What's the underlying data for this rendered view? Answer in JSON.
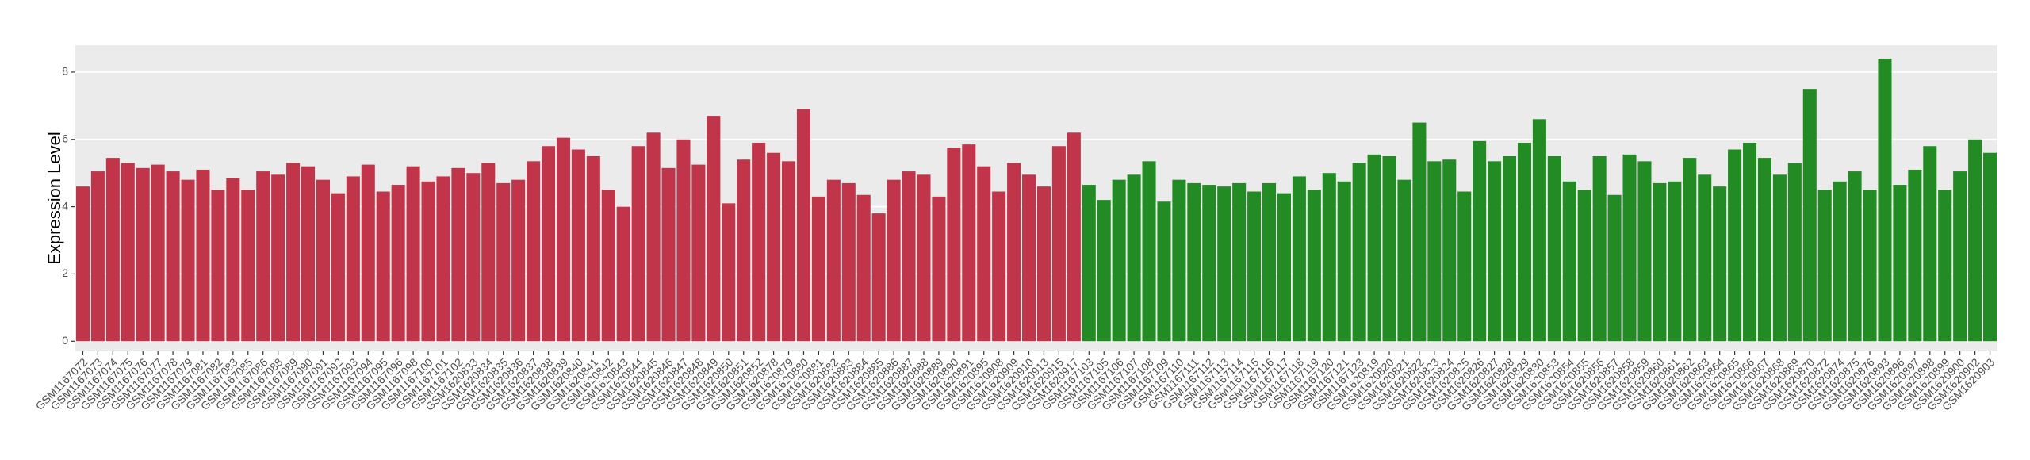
{
  "chart_data": {
    "type": "bar",
    "y_label": "Expression Level",
    "ylim": [
      -0.3,
      8.8
    ],
    "yticks": [
      0,
      2,
      4,
      6,
      8
    ],
    "grid": true,
    "series": [
      {
        "color": "#c0354a",
        "categories": [
          "GSM1167072",
          "GSM1167073",
          "GSM1167074",
          "GSM1167075",
          "GSM1167076",
          "GSM1167077",
          "GSM1167078",
          "GSM1167079",
          "GSM1167081",
          "GSM1167082",
          "GSM1167083",
          "GSM1167085",
          "GSM1167086",
          "GSM1167088",
          "GSM1167089",
          "GSM1167090",
          "GSM1167091",
          "GSM1167092",
          "GSM1167093",
          "GSM1167094",
          "GSM1167095",
          "GSM1167096",
          "GSM1167098",
          "GSM1167100",
          "GSM1167101",
          "GSM1167102",
          "GSM1620833",
          "GSM1620834",
          "GSM1620835",
          "GSM1620836",
          "GSM1620837",
          "GSM1620838",
          "GSM1620839",
          "GSM1620840",
          "GSM1620841",
          "GSM1620842",
          "GSM1620843",
          "GSM1620844",
          "GSM1620845",
          "GSM1620846",
          "GSM1620847",
          "GSM1620848",
          "GSM1620849",
          "GSM1620850",
          "GSM1620851",
          "GSM1620852",
          "GSM1620878",
          "GSM1620879",
          "GSM1620880",
          "GSM1620881",
          "GSM1620882",
          "GSM1620883",
          "GSM1620884",
          "GSM1620885",
          "GSM1620886",
          "GSM1620887",
          "GSM1620888",
          "GSM1620889",
          "GSM1620890",
          "GSM1620891",
          "GSM1620895",
          "GSM1620908",
          "GSM1620909",
          "GSM1620910",
          "GSM1620913",
          "GSM1620915",
          "GSM1620917"
        ],
        "values": [
          4.6,
          5.05,
          5.45,
          5.3,
          5.15,
          5.25,
          5.05,
          4.8,
          5.1,
          4.5,
          4.85,
          4.5,
          5.05,
          4.95,
          5.3,
          5.2,
          4.8,
          4.4,
          4.9,
          5.25,
          4.45,
          4.65,
          5.2,
          4.75,
          4.9,
          5.15,
          5.0,
          5.3,
          4.7,
          4.8,
          5.35,
          5.8,
          6.05,
          5.7,
          5.5,
          4.5,
          4.0,
          5.8,
          6.2,
          5.15,
          6.0,
          5.25,
          6.7,
          4.1,
          5.4,
          5.9,
          5.6,
          5.35,
          6.9,
          4.3,
          4.8,
          4.7,
          4.35,
          3.8,
          4.8,
          5.05,
          4.95,
          4.3,
          5.75,
          5.85,
          5.2,
          4.45,
          5.3,
          4.95,
          4.6,
          5.8,
          6.2
        ]
      },
      {
        "color": "#238b23",
        "categories": [
          "GSM1167103",
          "GSM1167105",
          "GSM1167106",
          "GSM1167107",
          "GSM1167108",
          "GSM1167109",
          "GSM1167110",
          "GSM1167111",
          "GSM1167112",
          "GSM1167113",
          "GSM1167114",
          "GSM1167115",
          "GSM1167116",
          "GSM1167117",
          "GSM1167118",
          "GSM1167119",
          "GSM1167120",
          "GSM1167121",
          "GSM1167123",
          "GSM1620819",
          "GSM1620820",
          "GSM1620821",
          "GSM1620822",
          "GSM1620823",
          "GSM1620824",
          "GSM1620825",
          "GSM1620826",
          "GSM1620827",
          "GSM1620828",
          "GSM1620829",
          "GSM1620830",
          "GSM1620853",
          "GSM1620854",
          "GSM1620855",
          "GSM1620856",
          "GSM1620857",
          "GSM1620858",
          "GSM1620859",
          "GSM1620860",
          "GSM1620861",
          "GSM1620862",
          "GSM1620863",
          "GSM1620864",
          "GSM1620865",
          "GSM1620866",
          "GSM1620867",
          "GSM1620868",
          "GSM1620869",
          "GSM1620870",
          "GSM1620872",
          "GSM1620874",
          "GSM1620875",
          "GSM1620876",
          "GSM1620893",
          "GSM1620896",
          "GSM1620897",
          "GSM1620898",
          "GSM1620899",
          "GSM1620900",
          "GSM1620902",
          "GSM1620903"
        ],
        "values": [
          4.65,
          4.2,
          4.8,
          4.95,
          5.35,
          4.15,
          4.8,
          4.7,
          4.65,
          4.6,
          4.7,
          4.45,
          4.7,
          4.4,
          4.9,
          4.5,
          5.0,
          4.75,
          5.3,
          5.55,
          5.5,
          4.8,
          6.5,
          5.35,
          5.4,
          4.45,
          5.95,
          5.35,
          5.5,
          5.9,
          6.6,
          5.5,
          4.75,
          4.5,
          5.5,
          4.35,
          5.55,
          5.35,
          4.7,
          4.75,
          5.45,
          4.95,
          4.6,
          5.7,
          5.9,
          5.45,
          4.95,
          5.3,
          7.5,
          4.5,
          4.75,
          5.05,
          4.5,
          8.4,
          4.65,
          5.1,
          5.8,
          4.5,
          5.05,
          6.0,
          5.6
        ]
      }
    ]
  }
}
